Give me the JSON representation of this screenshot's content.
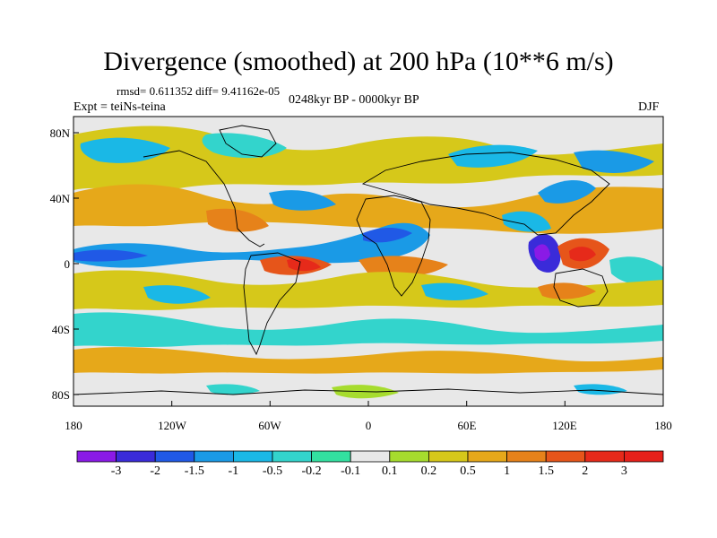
{
  "title": "Divergence (smoothed) at 200 hPa (10**6 m/s)",
  "stats_line": "rmsd= 0.611352 diff= 9.41162e-05",
  "experiment_label": "Expt = teiNs-teina",
  "period_label": "0248kyr BP - 0000kyr BP",
  "season_label": "DJF",
  "map": {
    "lon_ticks": [
      "180",
      "120W",
      "60W",
      "0",
      "60E",
      "120E",
      "180"
    ],
    "lat_ticks": [
      "80N",
      "40N",
      "0",
      "40S",
      "80S"
    ]
  },
  "colorbar": {
    "labels": [
      "-3",
      "-2",
      "-1.5",
      "-1",
      "-0.5",
      "-0.2",
      "-0.1",
      "0.1",
      "0.2",
      "0.5",
      "1",
      "1.5",
      "2",
      "3"
    ],
    "colors": [
      "#8a1ae6",
      "#3a2bd9",
      "#2059e6",
      "#1a9ae6",
      "#1ab8e6",
      "#33d4cc",
      "#33e0a0",
      "#e8e8e8",
      "#a6dc2e",
      "#d6c81a",
      "#e6a81a",
      "#e6821a",
      "#e6551a",
      "#e62a1a",
      "#e6201a"
    ]
  }
}
